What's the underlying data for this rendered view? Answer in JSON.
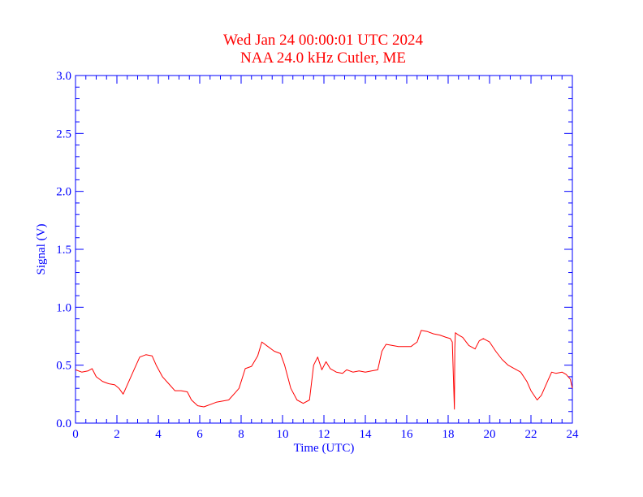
{
  "chart_data": {
    "type": "line",
    "title": "Wed Jan 24 00:00:01 UTC 2024",
    "subtitle": "NAA 24.0 kHz Cutler, ME",
    "xlabel": "Time (UTC)",
    "ylabel": "Signal (V)",
    "xlim": [
      0,
      24
    ],
    "ylim": [
      0,
      3.0
    ],
    "x_ticks": [
      "0",
      "2",
      "4",
      "6",
      "8",
      "10",
      "12",
      "14",
      "16",
      "18",
      "20",
      "22",
      "24"
    ],
    "y_ticks": [
      "0.0",
      "0.5",
      "1.0",
      "1.5",
      "2.0",
      "2.5",
      "3.0"
    ],
    "grid": false,
    "colors": {
      "axis": "#0000ff",
      "title": "#ff0000",
      "line": "#ff0000"
    },
    "series": [
      {
        "x": [
          0,
          0.3,
          0.6,
          0.8,
          1.0,
          1.3,
          1.6,
          1.9,
          2.1,
          2.3,
          2.5,
          2.8,
          3.1,
          3.4,
          3.7,
          3.9,
          4.2,
          4.5,
          4.8,
          5.1,
          5.4,
          5.6,
          5.9,
          6.2,
          6.5,
          6.8,
          7.1,
          7.4,
          7.7,
          7.9,
          8.2,
          8.5,
          8.8,
          9.0,
          9.3,
          9.6,
          9.9,
          10.1,
          10.4,
          10.7,
          11.0,
          11.3,
          11.5,
          11.7,
          11.9,
          12.1,
          12.3,
          12.6,
          12.9,
          13.1,
          13.4,
          13.7,
          14.0,
          14.3,
          14.6,
          14.8,
          15.0,
          15.3,
          15.6,
          15.9,
          16.2,
          16.5,
          16.7,
          17.0,
          17.3,
          17.6,
          17.9,
          18.1,
          18.2,
          18.3,
          18.32,
          18.35,
          18.5,
          18.7,
          19.0,
          19.3,
          19.5,
          19.7,
          20.0,
          20.3,
          20.6,
          20.9,
          21.2,
          21.5,
          21.8,
          22.0,
          22.3,
          22.5,
          22.8,
          23.0,
          23.2,
          23.5,
          23.7,
          23.9,
          24.0
        ],
        "y": [
          0.46,
          0.44,
          0.45,
          0.47,
          0.4,
          0.36,
          0.34,
          0.33,
          0.3,
          0.25,
          0.33,
          0.45,
          0.57,
          0.59,
          0.58,
          0.5,
          0.4,
          0.34,
          0.28,
          0.28,
          0.27,
          0.2,
          0.15,
          0.14,
          0.16,
          0.18,
          0.19,
          0.2,
          0.26,
          0.3,
          0.47,
          0.49,
          0.58,
          0.7,
          0.66,
          0.62,
          0.6,
          0.5,
          0.3,
          0.2,
          0.17,
          0.2,
          0.5,
          0.57,
          0.46,
          0.53,
          0.47,
          0.44,
          0.43,
          0.46,
          0.44,
          0.45,
          0.44,
          0.45,
          0.46,
          0.62,
          0.68,
          0.67,
          0.66,
          0.66,
          0.66,
          0.7,
          0.8,
          0.79,
          0.77,
          0.76,
          0.74,
          0.73,
          0.7,
          0.12,
          0.65,
          0.78,
          0.76,
          0.74,
          0.67,
          0.64,
          0.71,
          0.73,
          0.7,
          0.62,
          0.55,
          0.5,
          0.47,
          0.44,
          0.36,
          0.28,
          0.2,
          0.24,
          0.36,
          0.44,
          0.43,
          0.44,
          0.42,
          0.38,
          0.3
        ]
      }
    ]
  }
}
